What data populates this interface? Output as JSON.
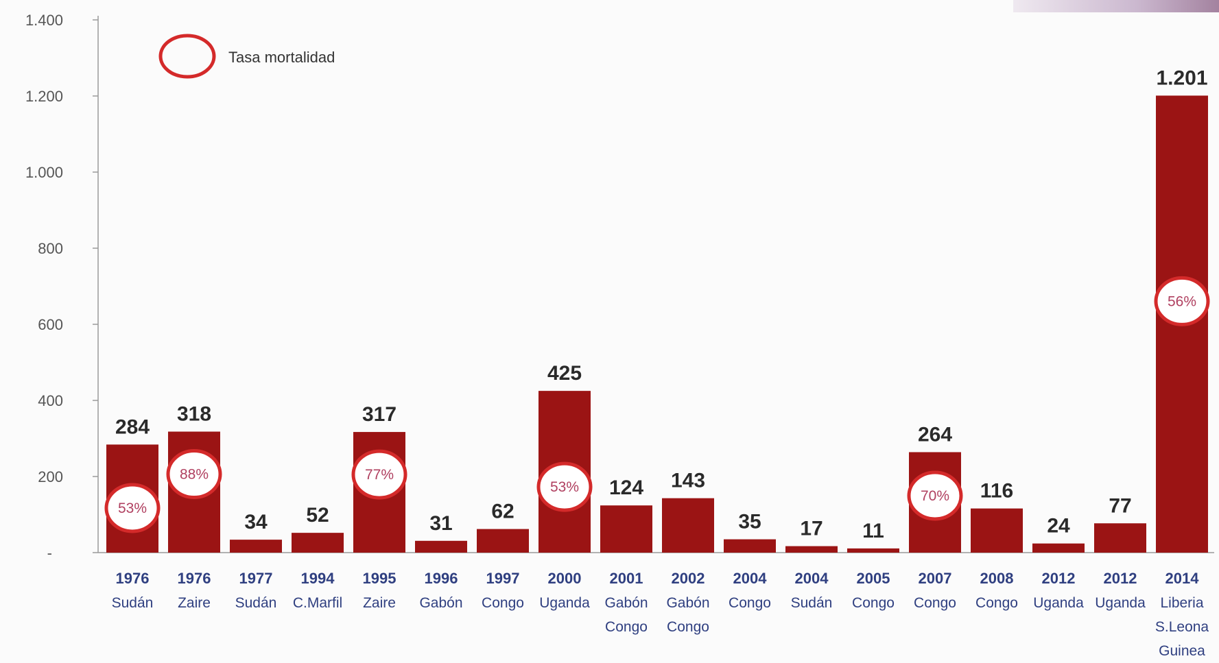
{
  "chart_data": {
    "type": "bar",
    "title": "",
    "xlabel": "",
    "ylabel": "",
    "ylim": [
      0,
      1400
    ],
    "yticks": [
      {
        "value": 0,
        "label": "-"
      },
      {
        "value": 200,
        "label": "200"
      },
      {
        "value": 400,
        "label": "400"
      },
      {
        "value": 600,
        "label": "600"
      },
      {
        "value": 800,
        "label": "800"
      },
      {
        "value": 1000,
        "label": "1.000"
      },
      {
        "value": 1200,
        "label": "1.200"
      },
      {
        "value": 1400,
        "label": "1.400"
      }
    ],
    "grid": false,
    "bar_color": "#9b1414",
    "legend": {
      "label": "Tasa mortalidad",
      "placement": "top-left",
      "marker_color": "#d42a2a"
    },
    "bars": [
      {
        "year": "1976",
        "country": [
          "Sudán"
        ],
        "value": 284,
        "label": "284",
        "mortality": "53%"
      },
      {
        "year": "1976",
        "country": [
          "Zaire"
        ],
        "value": 318,
        "label": "318",
        "mortality": "88%"
      },
      {
        "year": "1977",
        "country": [
          "Sudán"
        ],
        "value": 34,
        "label": "34",
        "mortality": null
      },
      {
        "year": "1994",
        "country": [
          "C.Marfil"
        ],
        "value": 52,
        "label": "52",
        "mortality": null
      },
      {
        "year": "1995",
        "country": [
          "Zaire"
        ],
        "value": 317,
        "label": "317",
        "mortality": "77%"
      },
      {
        "year": "1996",
        "country": [
          "Gabón"
        ],
        "value": 31,
        "label": "31",
        "mortality": null
      },
      {
        "year": "1997",
        "country": [
          "Congo"
        ],
        "value": 62,
        "label": "62",
        "mortality": null
      },
      {
        "year": "2000",
        "country": [
          "Uganda"
        ],
        "value": 425,
        "label": "425",
        "mortality": "53%"
      },
      {
        "year": "2001",
        "country": [
          "Gabón",
          "Congo"
        ],
        "value": 124,
        "label": "124",
        "mortality": null
      },
      {
        "year": "2002",
        "country": [
          "Gabón",
          "Congo"
        ],
        "value": 143,
        "label": "143",
        "mortality": null
      },
      {
        "year": "2004",
        "country": [
          "Congo"
        ],
        "value": 35,
        "label": "35",
        "mortality": null
      },
      {
        "year": "2004",
        "country": [
          "Sudán"
        ],
        "value": 17,
        "label": "17",
        "mortality": null
      },
      {
        "year": "2005",
        "country": [
          "Congo"
        ],
        "value": 11,
        "label": "11",
        "mortality": null
      },
      {
        "year": "2007",
        "country": [
          "Congo"
        ],
        "value": 264,
        "label": "264",
        "mortality": "70%"
      },
      {
        "year": "2008",
        "country": [
          "Congo"
        ],
        "value": 116,
        "label": "116",
        "mortality": null
      },
      {
        "year": "2012",
        "country": [
          "Uganda"
        ],
        "value": 24,
        "label": "24",
        "mortality": null
      },
      {
        "year": "2012",
        "country": [
          "Uganda"
        ],
        "value": 77,
        "label": "77",
        "mortality": null
      },
      {
        "year": "2014",
        "country": [
          "Liberia",
          "S.Leona",
          "Guinea"
        ],
        "value": 1201,
        "label": "1.201",
        "mortality": "56%"
      }
    ]
  }
}
